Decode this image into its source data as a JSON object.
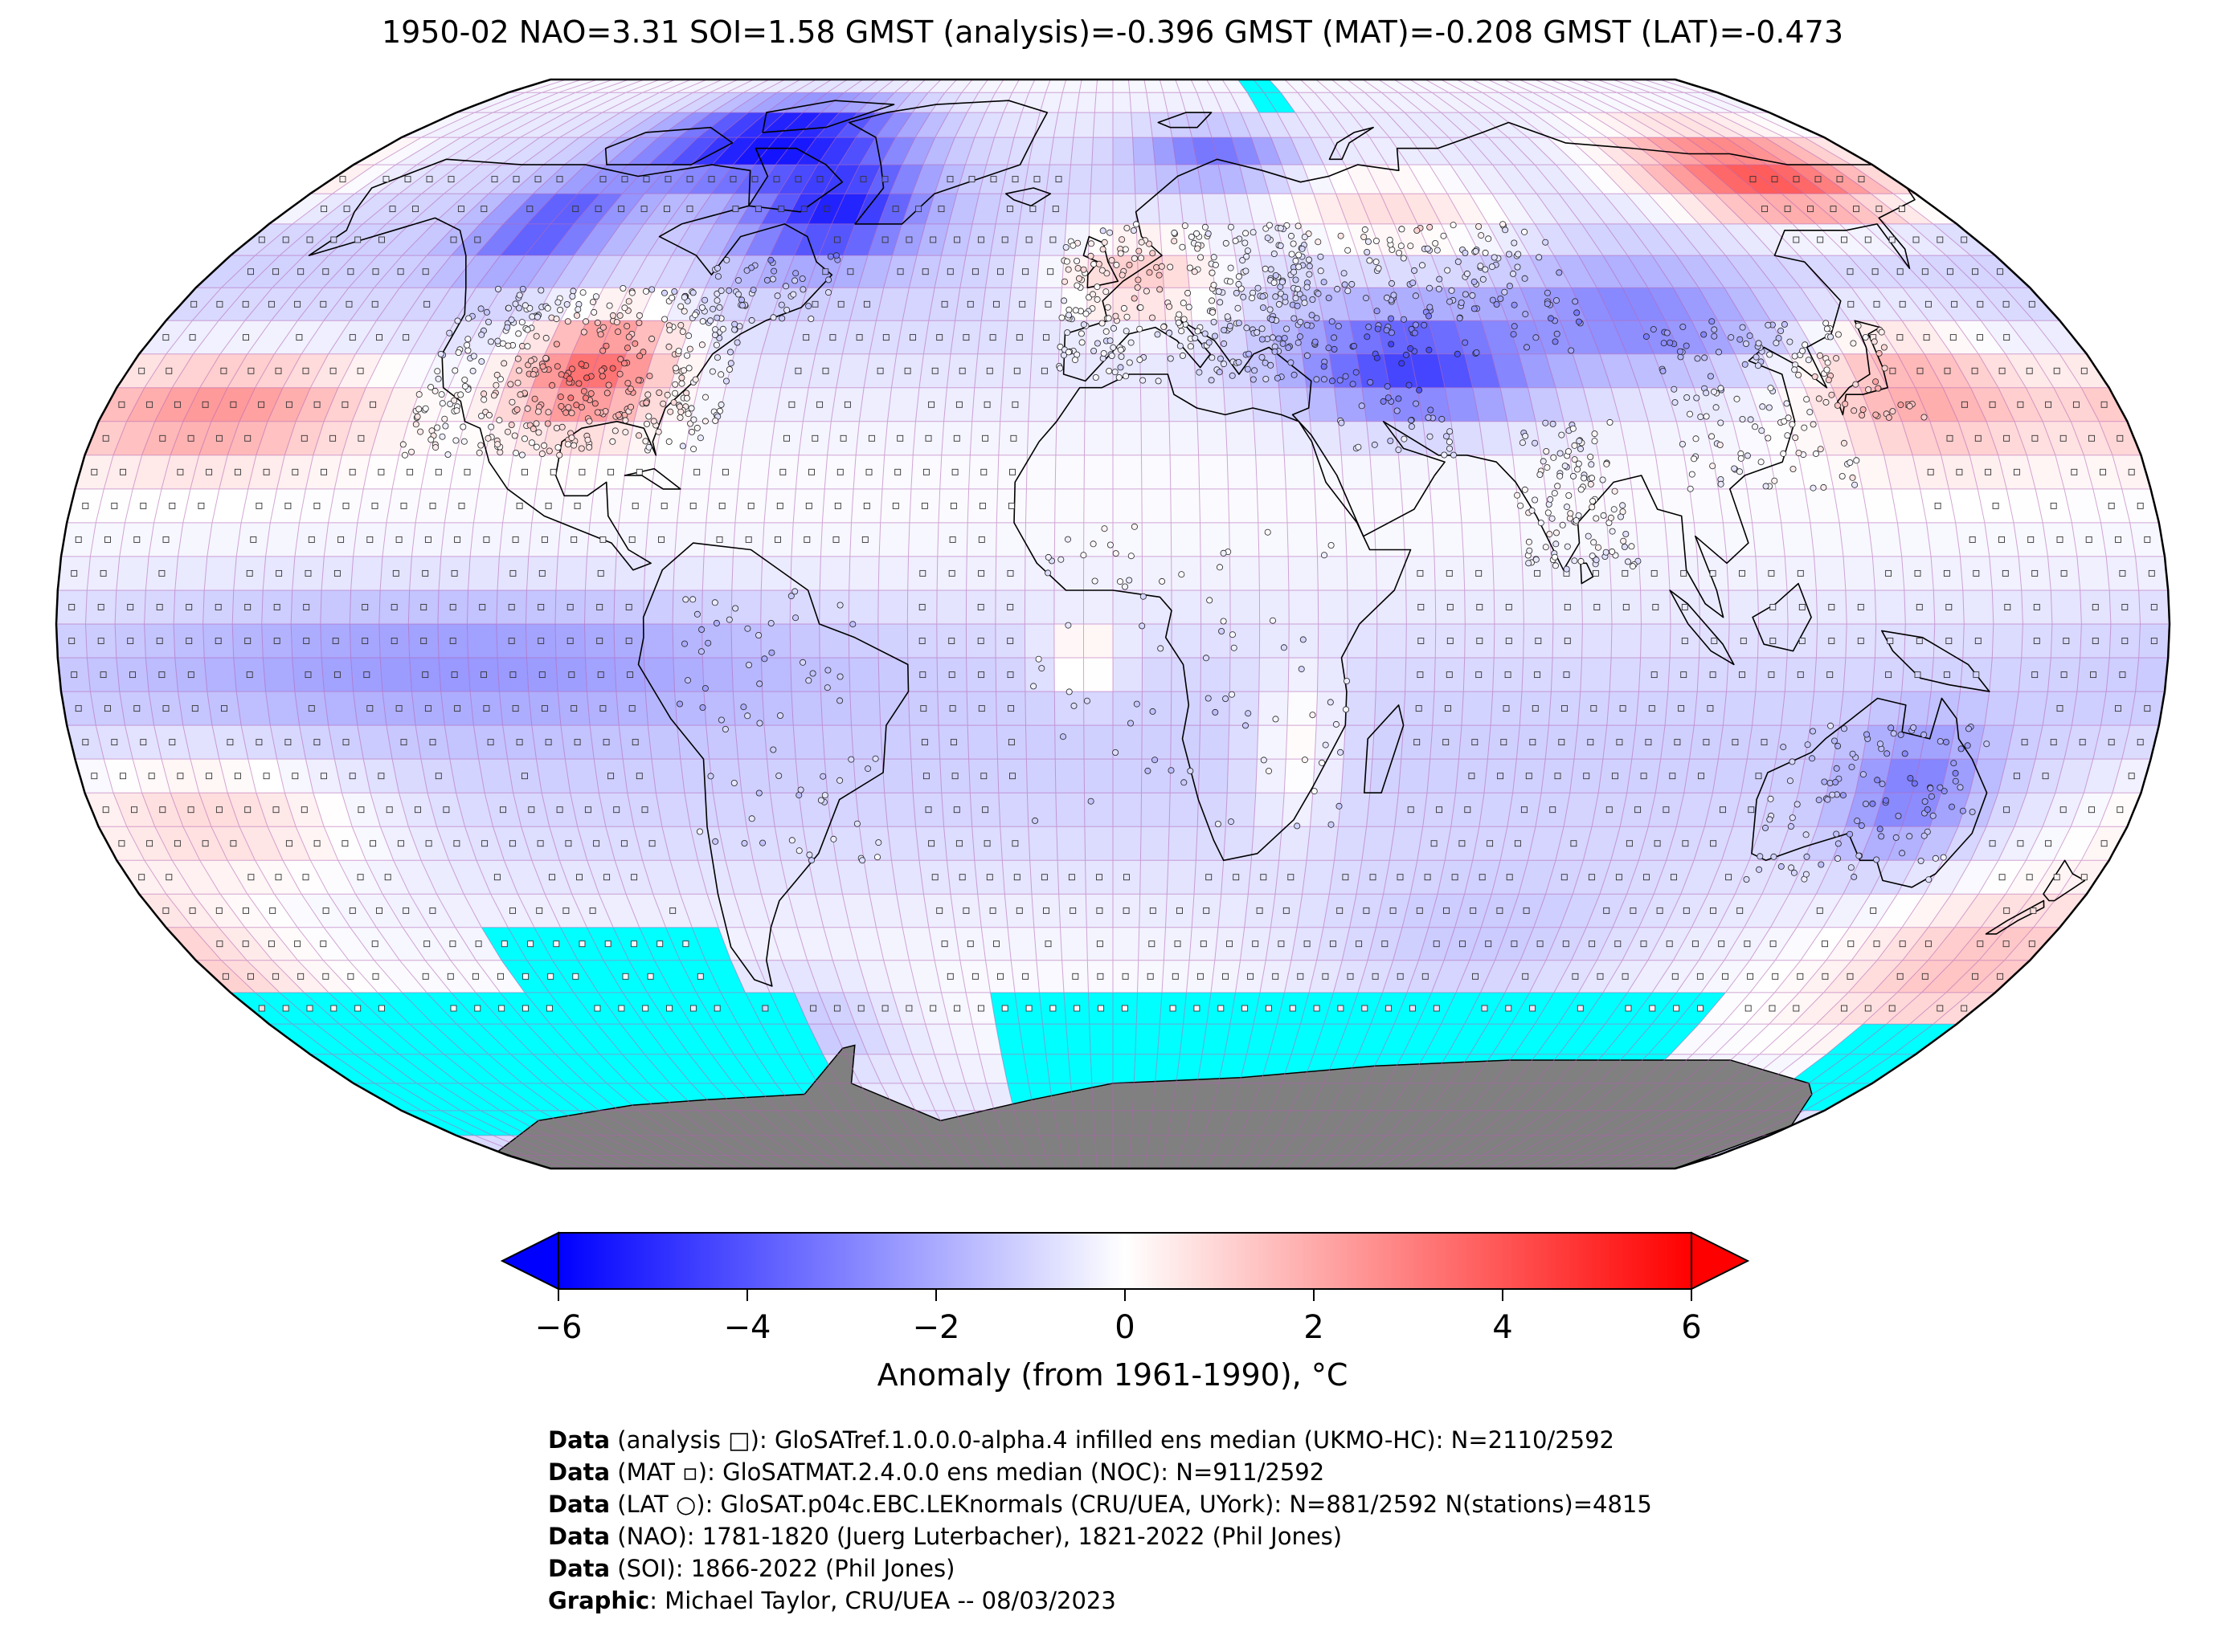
{
  "title": "1950-02 NAO=3.31 SOI=1.58 GMST (analysis)=-0.396 GMST (MAT)=-0.208 GMST (LAT)=-0.473",
  "colors": {
    "ocean_background": "#eceef9",
    "cold_extreme": "#0000ff",
    "warm_extreme": "#ff0000",
    "neutral": "#ffffff",
    "sea_ice": "#00ffff",
    "antarctica": "#808080",
    "grid_line": "#b060b0",
    "coastline": "#000000"
  },
  "colorbar": {
    "min": -6,
    "max": 6,
    "ticks": [
      -6,
      -4,
      -2,
      0,
      2,
      4,
      6
    ],
    "tick_labels": [
      "−6",
      "−4",
      "−2",
      "0",
      "2",
      "4",
      "6"
    ],
    "label": "Anomaly (from 1961-1990), °C",
    "extend": "both"
  },
  "map": {
    "projection": "Robinson",
    "grid_resolution_deg": 5,
    "anomaly_regions": [
      {
        "region": "Arctic Canada / Greenland",
        "anomaly": -5.5
      },
      {
        "region": "Eastern Canada",
        "anomaly": -4.5
      },
      {
        "region": "Central & Eastern USA",
        "anomaly": 3.5
      },
      {
        "region": "North Pacific subtropics",
        "anomaly": 2.5
      },
      {
        "region": "Western Europe",
        "anomaly": 2.5
      },
      {
        "region": "Eastern Siberia",
        "anomaly": 4.5
      },
      {
        "region": "Middle East / Central Asia",
        "anomaly": -4
      },
      {
        "region": "Scandinavia north",
        "anomaly": -3
      },
      {
        "region": "Tropical Pacific",
        "anomaly": -1
      },
      {
        "region": "Southern Ocean Indian",
        "anomaly": -1.5
      },
      {
        "region": "Australia",
        "anomaly": -2
      }
    ]
  },
  "credits": [
    {
      "bold": "Data",
      "text": " (analysis □): GloSATref.1.0.0.0-alpha.4 infilled ens median (UKMO-HC): N=2110/2592"
    },
    {
      "bold": "Data",
      "text": " (MAT ▫): GloSATMAT.2.4.0.0 ens median (NOC): N=911/2592"
    },
    {
      "bold": "Data",
      "text": " (LAT ○): GloSAT.p04c.EBC.LEKnormals (CRU/UEA, UYork): N=881/2592 N(stations)=4815"
    },
    {
      "bold": "Data",
      "text": " (NAO): 1781-1820 (Juerg Luterbacher), 1821-2022 (Phil Jones)"
    },
    {
      "bold": "Data",
      "text": " (SOI): 1866-2022 (Phil Jones)"
    },
    {
      "bold": "Graphic",
      "text": ": Michael Taylor, CRU/UEA -- 08/03/2023"
    }
  ]
}
